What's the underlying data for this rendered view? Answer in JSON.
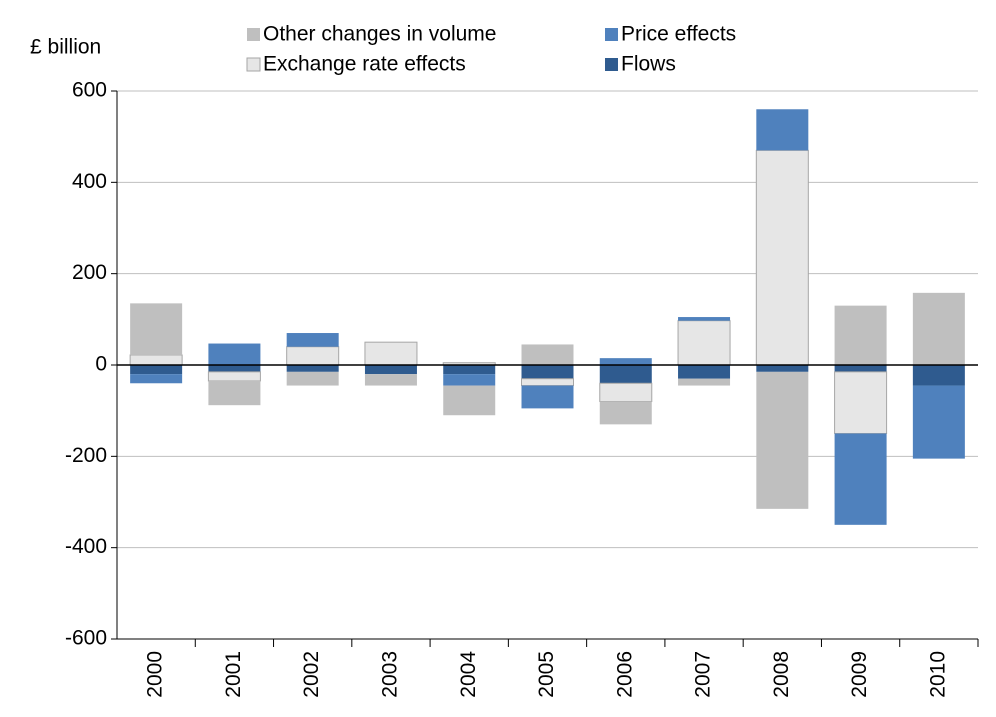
{
  "chart_data": {
    "type": "bar",
    "stacked": true,
    "y_label": "£ billion",
    "categories": [
      "2000",
      "2001",
      "2002",
      "2003",
      "2004",
      "2005",
      "2006",
      "2007",
      "2008",
      "2009",
      "2010"
    ],
    "series": [
      {
        "name": "Other changes in volume",
        "color": "#bfbfbf",
        "values": [
          113,
          -53,
          -30,
          -25,
          -65,
          45,
          -50,
          -15,
          -300,
          130,
          158
        ]
      },
      {
        "name": "Price effects",
        "color": "#4f81bd",
        "values": [
          -20,
          47,
          30,
          0,
          -25,
          -50,
          15,
          8,
          90,
          -200,
          -160
        ]
      },
      {
        "name": "Exchange rate effects",
        "color": "#e6e6e6",
        "values": [
          22,
          -20,
          40,
          50,
          5,
          -15,
          -40,
          97,
          470,
          -135,
          0
        ]
      },
      {
        "name": "Flows",
        "color": "#2f5b8f",
        "values": [
          -20,
          -15,
          -15,
          -20,
          -20,
          -30,
          -40,
          -30,
          -15,
          -15,
          -45
        ]
      }
    ],
    "ylim": [
      -600,
      600
    ],
    "yticks": [
      -600,
      -400,
      -200,
      0,
      200,
      400,
      600
    ],
    "grid": true
  }
}
